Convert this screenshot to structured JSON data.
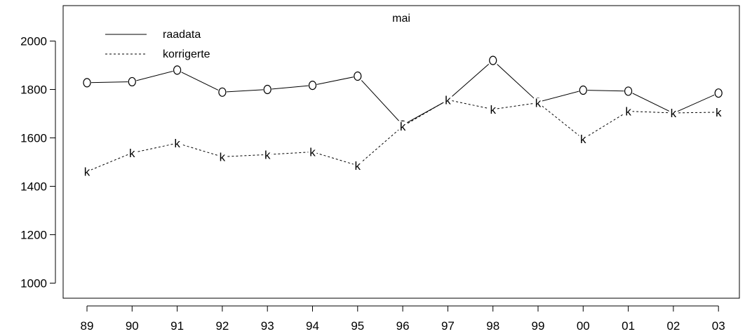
{
  "chart_data": {
    "type": "line",
    "title": "mai",
    "xlabel": "",
    "ylabel": "",
    "categories": [
      "89",
      "90",
      "91",
      "92",
      "93",
      "94",
      "95",
      "96",
      "97",
      "98",
      "99",
      "00",
      "01",
      "02",
      "03"
    ],
    "ylim": [
      960,
      2140
    ],
    "yticks": [
      1000,
      1200,
      1400,
      1600,
      1800,
      2000
    ],
    "grid": false,
    "legend_position": "top-left",
    "series": [
      {
        "name": "raadata",
        "line_style": "solid",
        "marker": "o",
        "values": [
          1828,
          1832,
          1880,
          1789,
          1800,
          1817,
          1855,
          1653,
          1756,
          1920,
          1748,
          1797,
          1793,
          1702,
          1785
        ]
      },
      {
        "name": "korrigerte",
        "line_style": "dashed",
        "marker": "k",
        "values": [
          1461,
          1538,
          1578,
          1522,
          1531,
          1542,
          1486,
          1648,
          1757,
          1718,
          1745,
          1596,
          1710,
          1703,
          1706
        ]
      }
    ]
  }
}
